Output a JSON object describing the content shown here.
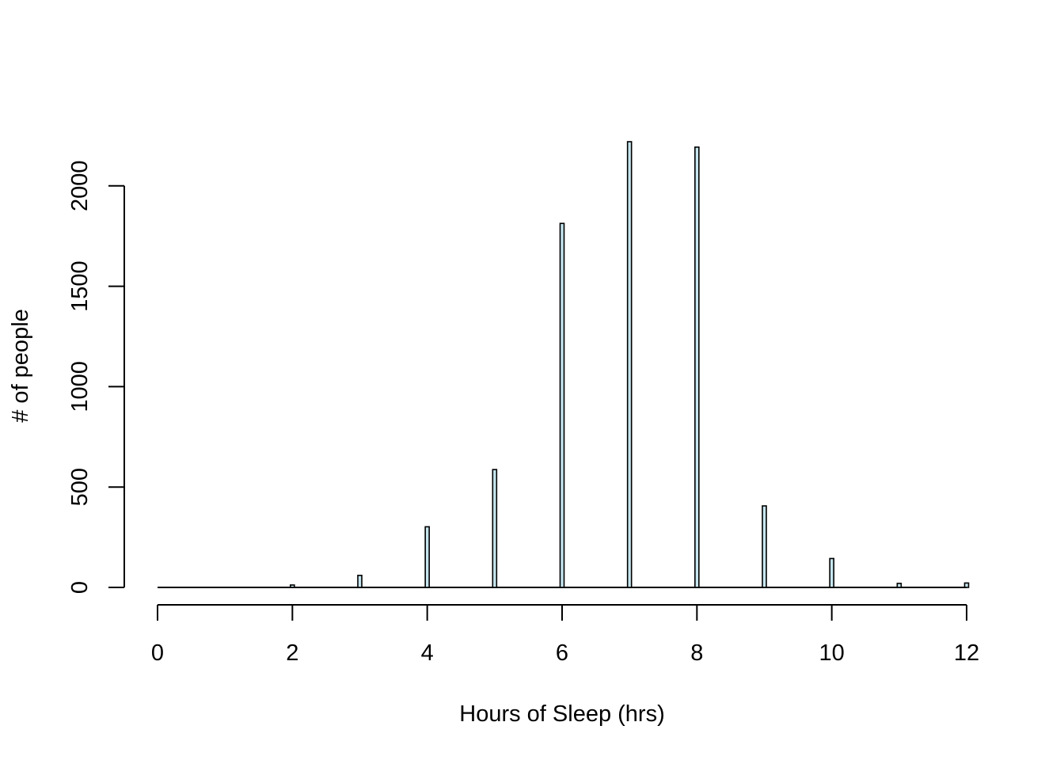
{
  "chart_data": {
    "type": "bar",
    "title": "",
    "xlabel": "Hours of Sleep (hrs)",
    "ylabel": "# of people",
    "x": [
      2,
      3,
      4,
      5,
      6,
      7,
      8,
      9,
      10,
      11,
      12
    ],
    "values": [
      12,
      60,
      302,
      587,
      1813,
      2220,
      2193,
      406,
      144,
      20,
      22
    ],
    "xlim": [
      0,
      12
    ],
    "ylim": [
      0,
      2220
    ],
    "x_ticks": [
      0,
      2,
      4,
      6,
      8,
      10,
      12
    ],
    "y_ticks": [
      0,
      500,
      1000,
      1500,
      2000
    ],
    "x_tick_labels": [
      "0",
      "2",
      "4",
      "6",
      "8",
      "10",
      "12"
    ],
    "y_tick_labels": [
      "0",
      "500",
      "1000",
      "1500",
      "2000"
    ],
    "bar_fill": "#c6e6ef",
    "bar_stroke": "#000000",
    "grid": false,
    "legend": "none"
  }
}
